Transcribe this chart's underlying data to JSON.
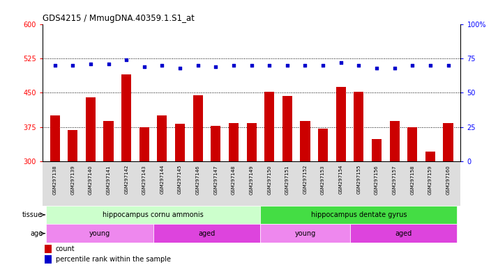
{
  "title": "GDS4215 / MmugDNA.40359.1.S1_at",
  "samples": [
    "GSM297138",
    "GSM297139",
    "GSM297140",
    "GSM297141",
    "GSM297142",
    "GSM297143",
    "GSM297144",
    "GSM297145",
    "GSM297146",
    "GSM297147",
    "GSM297148",
    "GSM297149",
    "GSM297150",
    "GSM297151",
    "GSM297152",
    "GSM297153",
    "GSM297154",
    "GSM297155",
    "GSM297156",
    "GSM297157",
    "GSM297158",
    "GSM297159",
    "GSM297160"
  ],
  "counts": [
    400,
    368,
    440,
    388,
    490,
    375,
    400,
    382,
    445,
    378,
    383,
    383,
    452,
    443,
    388,
    371,
    463,
    452,
    348,
    388,
    375,
    322,
    383
  ],
  "pct_values": [
    70,
    70,
    71,
    71,
    74,
    69,
    70,
    68,
    70,
    69,
    70,
    70,
    70,
    70,
    70,
    70,
    72,
    70,
    68,
    68,
    70,
    70,
    70
  ],
  "bar_color": "#cc0000",
  "dot_color": "#0000cc",
  "ylim_left": [
    300,
    600
  ],
  "ylim_right": [
    0,
    100
  ],
  "yticks_left": [
    300,
    375,
    450,
    525,
    600
  ],
  "yticks_right": [
    0,
    25,
    50,
    75,
    100
  ],
  "hlines": [
    375,
    450,
    525
  ],
  "tissue_groups": [
    {
      "label": "hippocampus cornu ammonis",
      "start": 0,
      "end": 12,
      "color": "#ccffcc"
    },
    {
      "label": "hippocampus dentate gyrus",
      "start": 12,
      "end": 23,
      "color": "#44dd44"
    }
  ],
  "age_groups": [
    {
      "label": "young",
      "start": 0,
      "end": 6,
      "color": "#ee88ee"
    },
    {
      "label": "aged",
      "start": 6,
      "end": 12,
      "color": "#dd44dd"
    },
    {
      "label": "young",
      "start": 12,
      "end": 17,
      "color": "#ee88ee"
    },
    {
      "label": "aged",
      "start": 17,
      "end": 23,
      "color": "#dd44dd"
    }
  ],
  "legend_count_label": "count",
  "legend_pct_label": "percentile rank within the sample",
  "tissue_label": "tissue",
  "age_label": "age",
  "fig_width": 7.14,
  "fig_height": 3.84,
  "dpi": 100
}
